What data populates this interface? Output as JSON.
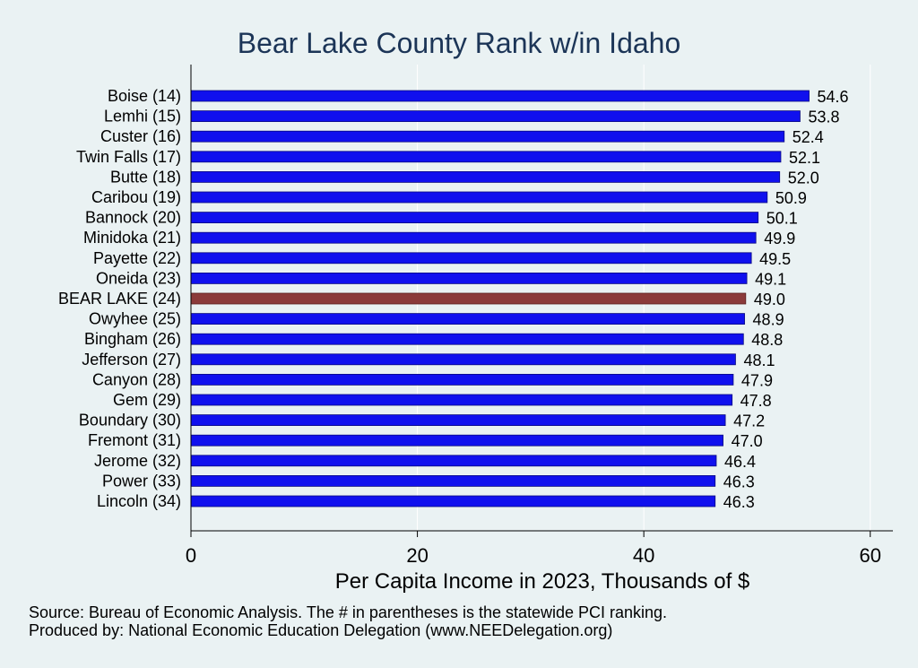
{
  "chart_data": {
    "type": "bar",
    "orientation": "horizontal",
    "title": "Bear Lake County Rank w/in Idaho",
    "xlabel": "Per Capita Income in 2023, Thousands of $",
    "ylabel": "",
    "xlim": [
      0,
      62
    ],
    "xticks": [
      0,
      20,
      40,
      60
    ],
    "grid": true,
    "categories": [
      "Boise (14)",
      "Lemhi (15)",
      "Custer (16)",
      "Twin Falls (17)",
      "Butte (18)",
      "Caribou (19)",
      "Bannock (20)",
      "Minidoka (21)",
      "Payette (22)",
      "Oneida (23)",
      "BEAR LAKE (24)",
      "Owyhee (25)",
      "Bingham (26)",
      "Jefferson (27)",
      "Canyon (28)",
      "Gem (29)",
      "Boundary (30)",
      "Fremont (31)",
      "Jerome (32)",
      "Power (33)",
      "Lincoln (34)"
    ],
    "values": [
      54.6,
      53.8,
      52.4,
      52.1,
      52.0,
      50.9,
      50.1,
      49.9,
      49.5,
      49.1,
      49.0,
      48.9,
      48.8,
      48.1,
      47.9,
      47.8,
      47.2,
      47.0,
      46.4,
      46.3,
      46.3
    ],
    "value_labels": [
      "54.6",
      "53.8",
      "52.4",
      "52.1",
      "52.0",
      "50.9",
      "50.1",
      "49.9",
      "49.5",
      "49.1",
      "49.0",
      "48.9",
      "48.8",
      "48.1",
      "47.9",
      "47.8",
      "47.2",
      "47.0",
      "46.4",
      "46.3",
      "46.3"
    ],
    "highlight_index": 10,
    "colors": {
      "bar": "#1010ee",
      "highlight": "#8b3a3a",
      "bar_edge": "#0a0a80"
    }
  },
  "footnotes": {
    "source": "Source: Bureau of Economic Analysis. The # in parentheses is the statewide PCI ranking.",
    "produced_by": "Produced by: National Economic Education Delegation (www.NEEDelegation.org)"
  }
}
